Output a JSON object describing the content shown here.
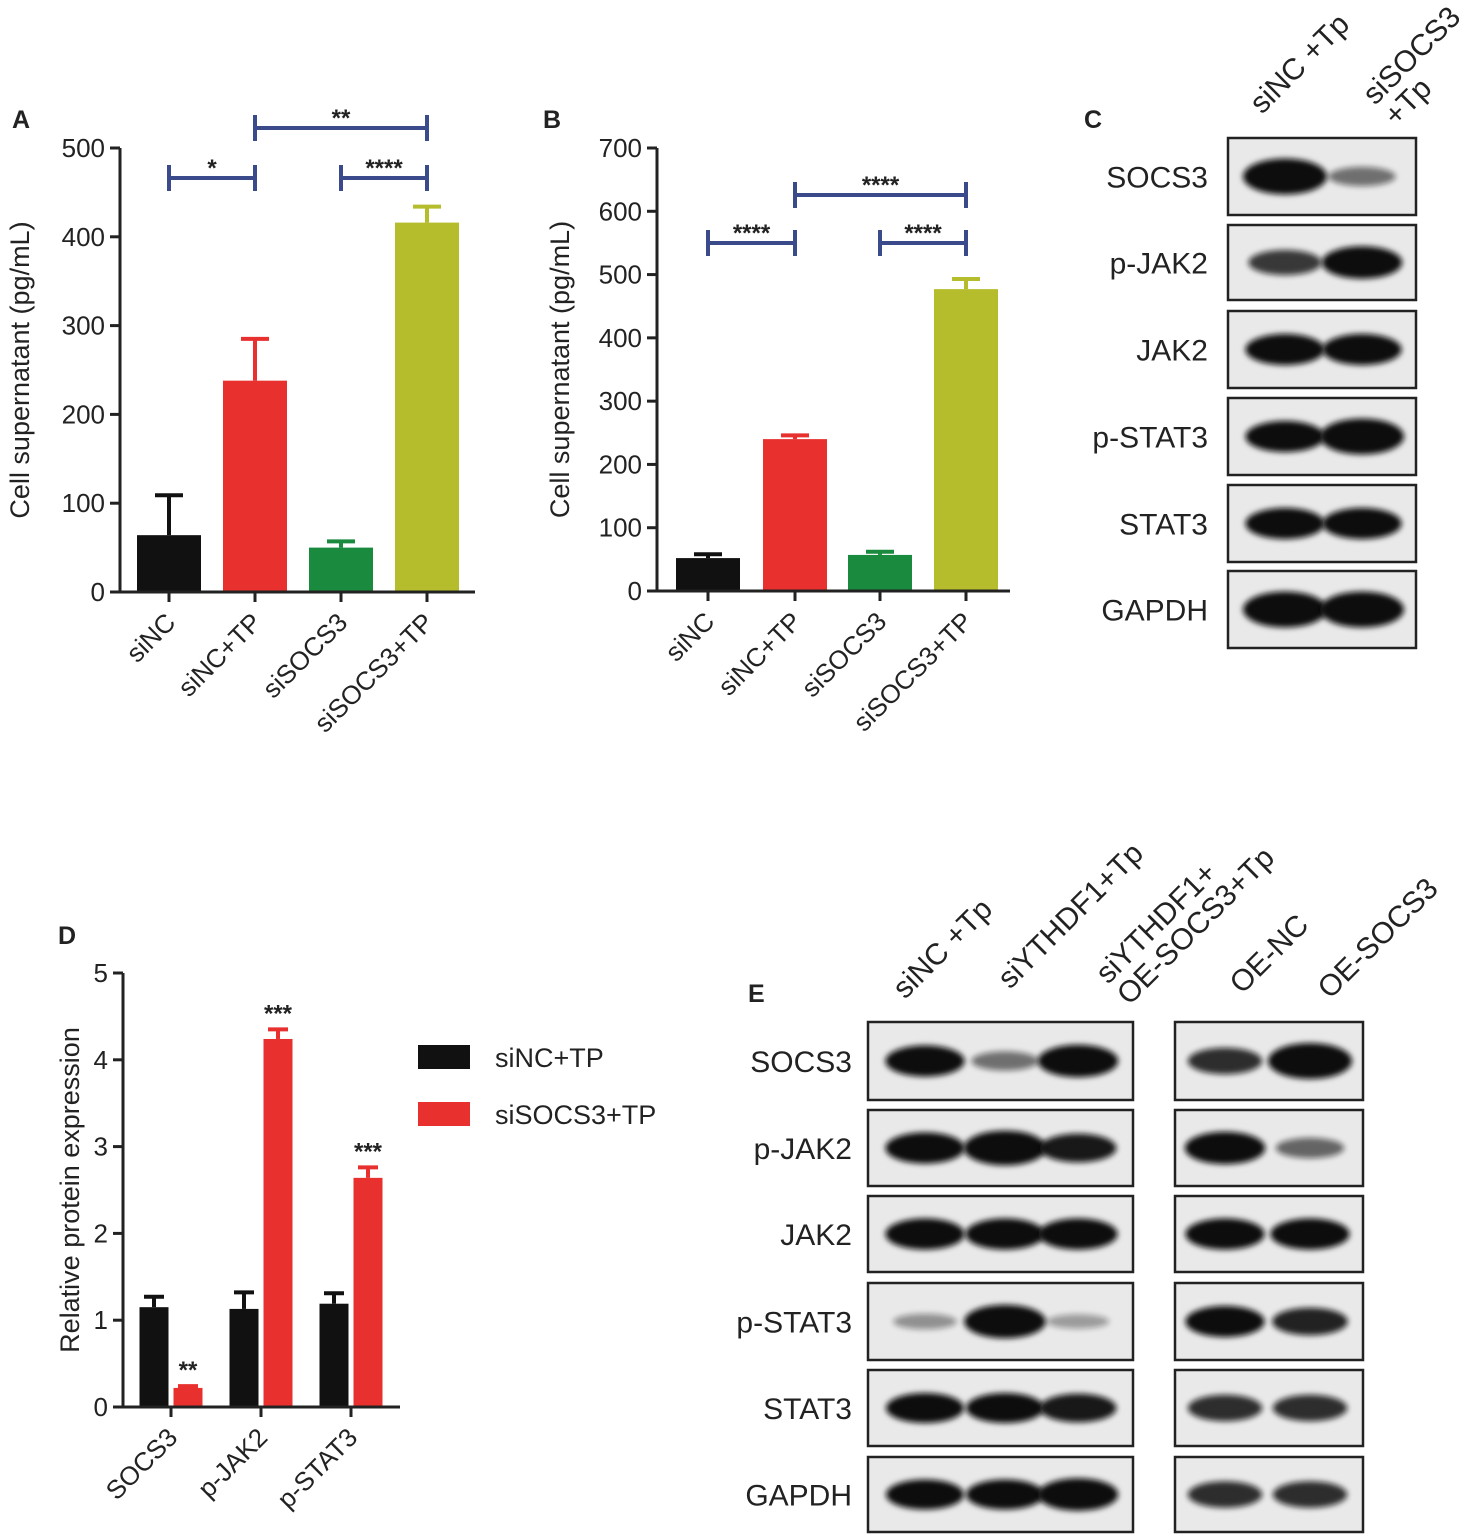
{
  "chart_data": [
    {
      "type": "bar",
      "panel": "A",
      "y_label": "Cell supernatant  (pg/mL)",
      "categories": [
        "siNC",
        "siNC+TP",
        "siSOCS3",
        "siSOCS3+TP"
      ],
      "values": [
        64,
        238,
        50,
        416
      ],
      "errors": [
        45,
        47,
        7,
        18
      ],
      "colors": [
        "#111111",
        "#e8302f",
        "#1a8a3f",
        "#b5bd2c"
      ],
      "annotations": [
        "*",
        "**",
        "****"
      ],
      "ylim": [
        0,
        500
      ],
      "yticks": [
        0,
        100,
        200,
        300,
        400,
        500
      ]
    },
    {
      "type": "bar",
      "panel": "B",
      "y_label": "Cell supernatant  (pg/mL)",
      "categories": [
        "siNC",
        "siNC+TP",
        "siSOCS3",
        "siSOCS3+TP"
      ],
      "values": [
        52,
        240,
        57,
        477
      ],
      "errors": [
        6,
        6,
        5,
        16
      ],
      "colors": [
        "#111111",
        "#e8302f",
        "#1a8a3f",
        "#b5bd2c"
      ],
      "annotations": [
        "****",
        "****",
        "****"
      ],
      "ylim": [
        0,
        700
      ],
      "yticks": [
        0,
        100,
        200,
        300,
        400,
        500,
        600,
        700
      ]
    },
    {
      "type": "grouped_bar",
      "panel": "D",
      "y_label": "Relative protein expression",
      "categories": [
        "SOCS3",
        "p-JAK2",
        "p-STAT3"
      ],
      "series": [
        {
          "name": "siNC+TP",
          "color": "#111111",
          "values": [
            1.15,
            1.13,
            1.19
          ],
          "errors": [
            0.12,
            0.19,
            0.12
          ]
        },
        {
          "name": "siSOCS3+TP",
          "color": "#e8302f",
          "values": [
            0.22,
            4.24,
            2.64
          ],
          "errors": [
            0.02,
            0.11,
            0.12
          ],
          "annotations": [
            "**",
            "***",
            "***"
          ]
        }
      ],
      "ylim": [
        0,
        5
      ],
      "yticks": [
        0,
        1,
        2,
        3,
        4,
        5
      ]
    }
  ],
  "blots": [
    {
      "panel": "C",
      "lanes": [
        [
          "siNC +Tp"
        ],
        [
          "siSOCS3",
          "+Tp"
        ]
      ],
      "rows": [
        "SOCS3",
        "p-JAK2",
        "JAK2",
        "p-STAT3",
        "STAT3",
        "GAPDH"
      ]
    },
    {
      "panel": "E",
      "lanes": [
        [
          "siNC +Tp"
        ],
        [
          "siYTHDF1+Tp"
        ],
        [
          "siYTHDF1+",
          "OE-SOCS3+Tp"
        ],
        [
          "OE-NC"
        ],
        [
          "OE-SOCS3"
        ]
      ],
      "rows": [
        "SOCS3",
        "p-JAK2",
        "JAK2",
        "p-STAT3",
        "STAT3",
        "GAPDH"
      ]
    }
  ]
}
